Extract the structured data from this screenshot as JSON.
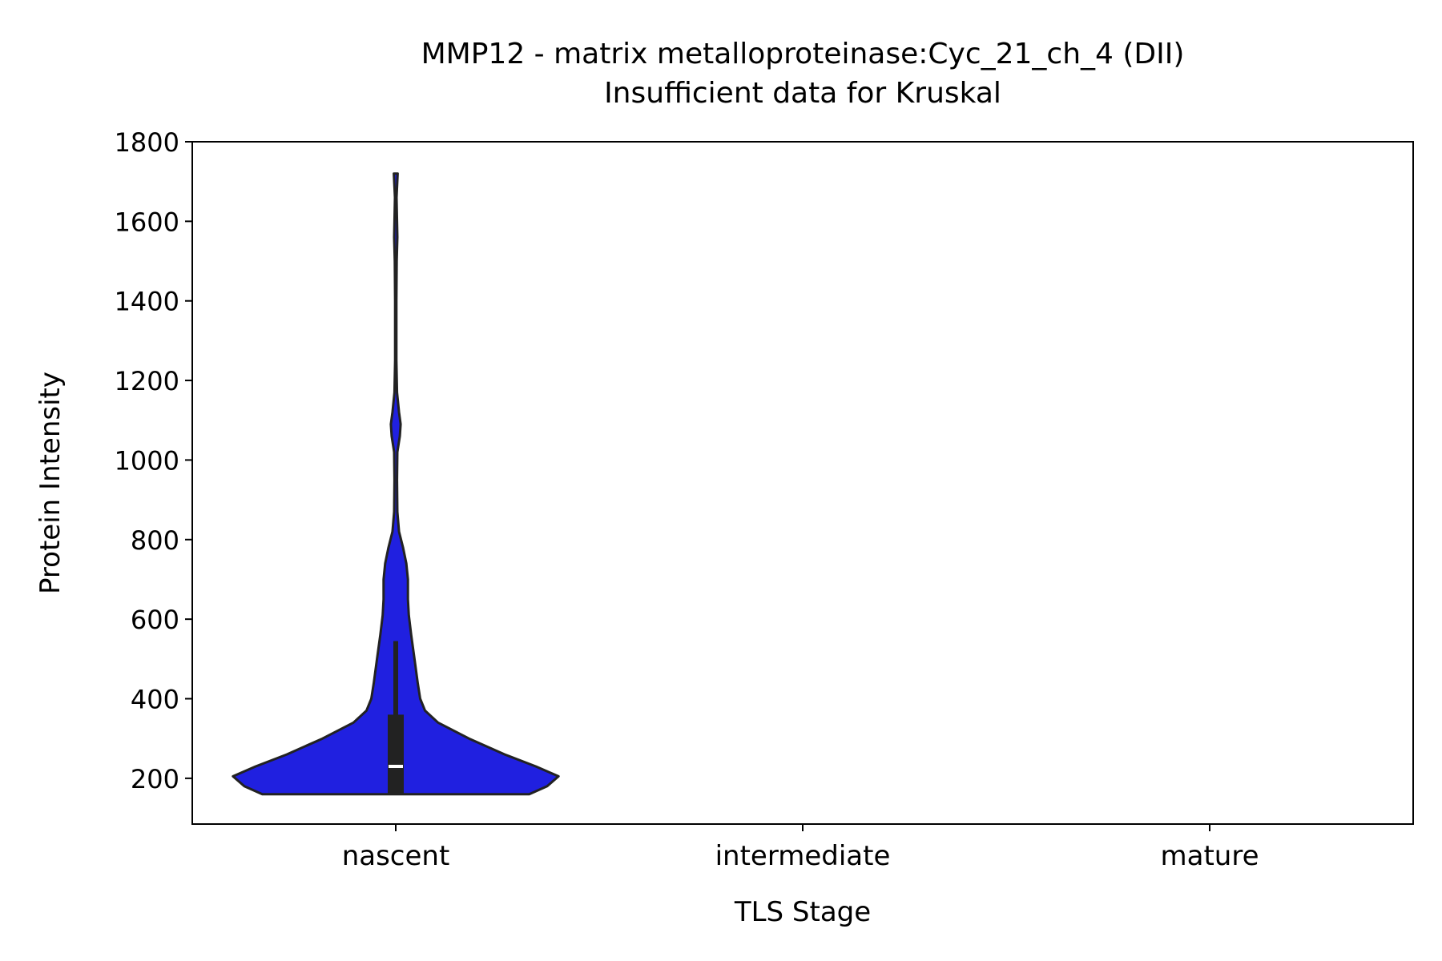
{
  "chart_data": {
    "type": "violin",
    "title": "MMP12 - matrix metalloproteinase:Cyc_21_ch_4 (DII)",
    "subtitle": "Insufficient data for Kruskal",
    "xlabel": "TLS Stage",
    "ylabel": "Protein Intensity",
    "categories": [
      "nascent",
      "intermediate",
      "mature"
    ],
    "ylim": [
      85,
      1800
    ],
    "yticks": [
      200,
      400,
      600,
      800,
      1000,
      1200,
      1400,
      1600,
      1800
    ],
    "grid": false,
    "fill_color": "#2020e0",
    "edge_color": "#222222",
    "violins": [
      {
        "category": "nascent",
        "min": 160,
        "max": 1720,
        "q1": 160,
        "median": 230,
        "q3": 360,
        "whisker_low": 160,
        "whisker_high": 545,
        "density": [
          [
            160,
            0.82
          ],
          [
            180,
            0.93
          ],
          [
            205,
            1.0
          ],
          [
            230,
            0.86
          ],
          [
            260,
            0.67
          ],
          [
            300,
            0.45
          ],
          [
            340,
            0.26
          ],
          [
            370,
            0.18
          ],
          [
            400,
            0.15
          ],
          [
            440,
            0.135
          ],
          [
            500,
            0.115
          ],
          [
            560,
            0.095
          ],
          [
            610,
            0.08
          ],
          [
            650,
            0.075
          ],
          [
            700,
            0.075
          ],
          [
            740,
            0.065
          ],
          [
            780,
            0.045
          ],
          [
            820,
            0.02
          ],
          [
            870,
            0.01
          ],
          [
            950,
            0.008
          ],
          [
            1020,
            0.01
          ],
          [
            1060,
            0.025
          ],
          [
            1090,
            0.03
          ],
          [
            1120,
            0.02
          ],
          [
            1170,
            0.008
          ],
          [
            1250,
            0.004
          ],
          [
            1400,
            0.004
          ],
          [
            1500,
            0.006
          ],
          [
            1560,
            0.01
          ],
          [
            1600,
            0.008
          ],
          [
            1660,
            0.005
          ],
          [
            1720,
            0.012
          ]
        ]
      }
    ]
  }
}
